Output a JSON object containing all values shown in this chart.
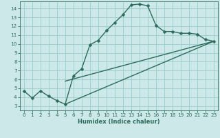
{
  "xlabel": "Humidex (Indice chaleur)",
  "bg_color": "#cce8e8",
  "grid_color": "#99cccc",
  "line_color": "#2d6b5e",
  "xlim": [
    -0.5,
    23.5
  ],
  "ylim": [
    2.5,
    14.8
  ],
  "xticks": [
    0,
    1,
    2,
    3,
    4,
    5,
    6,
    7,
    8,
    9,
    10,
    11,
    12,
    13,
    14,
    15,
    16,
    17,
    18,
    19,
    20,
    21,
    22,
    23
  ],
  "yticks": [
    3,
    4,
    5,
    6,
    7,
    8,
    9,
    10,
    11,
    12,
    13,
    14
  ],
  "curve1_x": [
    0,
    1,
    2,
    3,
    4,
    5,
    6,
    7,
    8,
    9,
    10,
    11,
    12,
    13,
    14,
    15,
    16,
    17,
    18,
    19,
    20,
    21,
    22,
    23
  ],
  "curve1_y": [
    4.7,
    3.9,
    4.7,
    4.1,
    3.6,
    3.2,
    6.4,
    7.2,
    9.9,
    10.4,
    11.5,
    12.4,
    13.3,
    14.4,
    14.5,
    14.3,
    12.1,
    11.4,
    11.4,
    11.2,
    11.2,
    11.1,
    10.5,
    10.3
  ],
  "curve2_x": [
    5,
    23
  ],
  "curve2_y": [
    3.2,
    10.3
  ],
  "curve3_x": [
    5,
    23
  ],
  "curve3_y": [
    5.8,
    10.3
  ],
  "marker": "D",
  "markersize": 2.5,
  "linewidth": 1.0,
  "axis_fontsize": 6.0,
  "tick_fontsize": 5.2
}
